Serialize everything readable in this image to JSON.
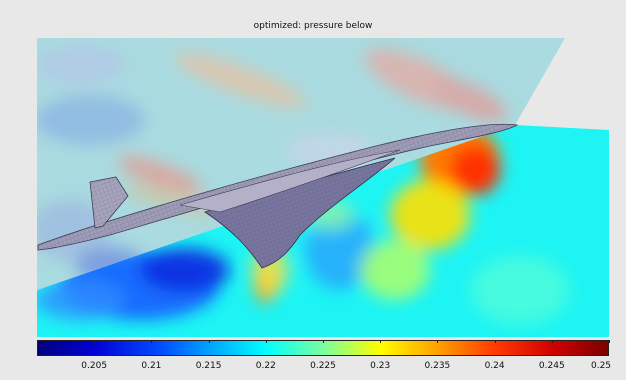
{
  "title": "optimized: pressure below",
  "colorbar": {
    "ticks": [
      "0.205",
      "0.21",
      "0.215",
      "0.22",
      "0.225",
      "0.23",
      "0.235",
      "0.24",
      "0.245",
      "0.25"
    ],
    "min": 0.2,
    "max": 0.25,
    "colors": [
      "#00007a",
      "#0000d6",
      "#0050ff",
      "#00b4ff",
      "#00ffff",
      "#78ffa0",
      "#ffff00",
      "#ffa000",
      "#ff3c00",
      "#d20000",
      "#7a0000"
    ]
  }
}
